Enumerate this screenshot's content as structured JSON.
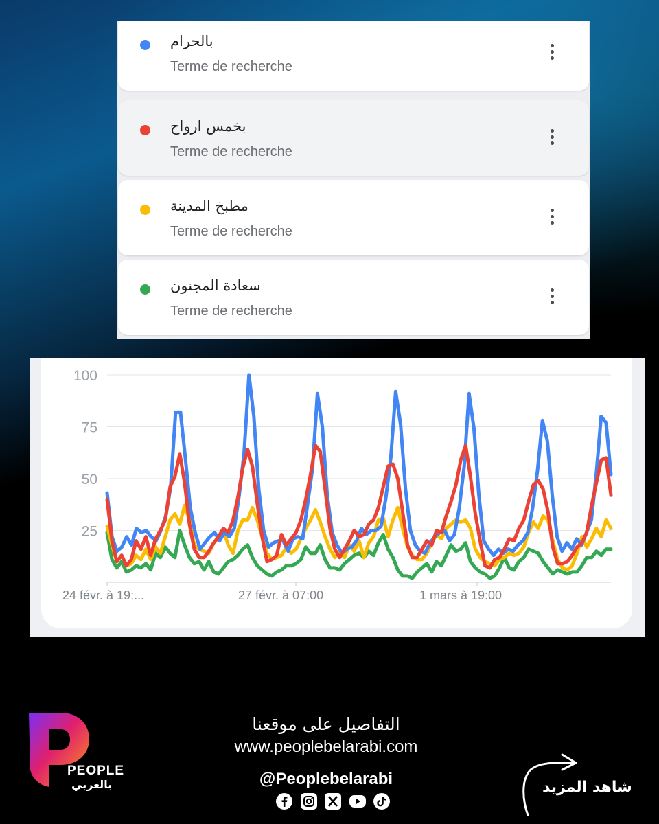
{
  "terms": [
    {
      "name": "بالحرام",
      "subtitle": "Terme de recherche",
      "color": "#4285f4",
      "menu_icon": "more-vert-icon"
    },
    {
      "name": "بخمس ارواح",
      "subtitle": "Terme de recherche",
      "color": "#ea4335",
      "menu_icon": "more-vert-icon"
    },
    {
      "name": "مطبخ المدينة",
      "subtitle": "Terme de recherche",
      "color": "#fbbc04",
      "menu_icon": "more-vert-icon"
    },
    {
      "name": "سعادة المجنون",
      "subtitle": "Terme de recherche",
      "color": "#34a853",
      "menu_icon": "more-vert-icon"
    }
  ],
  "chart_data": {
    "type": "line",
    "y_ticks": [
      "100",
      "75",
      "50",
      "25"
    ],
    "ylim": [
      0,
      100
    ],
    "x_ticks": [
      "24 févr. à 19:...",
      "27 févr. à 07:00",
      "1 mars à 19:00"
    ],
    "grid": true,
    "series": [
      {
        "name": "بالحرام",
        "color": "#4285f4",
        "values": [
          43,
          22,
          15,
          17,
          22,
          18,
          26,
          24,
          25,
          22,
          20,
          25,
          32,
          46,
          82,
          82,
          60,
          36,
          24,
          16,
          19,
          22,
          24,
          20,
          24,
          22,
          26,
          42,
          62,
          100,
          80,
          45,
          25,
          17,
          19,
          20,
          20,
          15,
          21,
          22,
          21,
          38,
          55,
          91,
          75,
          42,
          24,
          18,
          14,
          16,
          17,
          20,
          26,
          23,
          25,
          25,
          27,
          41,
          60,
          92,
          76,
          45,
          25,
          18,
          15,
          14,
          19,
          22,
          24,
          25,
          20,
          23,
          36,
          56,
          91,
          74,
          42,
          20,
          16,
          13,
          16,
          14,
          16,
          15,
          18,
          20,
          24,
          36,
          54,
          78,
          68,
          42,
          22,
          15,
          19,
          16,
          21,
          18,
          24,
          30,
          52,
          80,
          77,
          52
        ]
      },
      {
        "name": "بخمس ارواح",
        "color": "#ea4335",
        "values": [
          40,
          20,
          10,
          13,
          8,
          11,
          20,
          16,
          22,
          13,
          21,
          25,
          30,
          46,
          51,
          62,
          48,
          28,
          16,
          12,
          12,
          15,
          19,
          22,
          26,
          24,
          30,
          41,
          55,
          64,
          56,
          38,
          22,
          10,
          11,
          13,
          23,
          18,
          21,
          24,
          30,
          40,
          52,
          66,
          63,
          45,
          26,
          16,
          12,
          16,
          20,
          25,
          22,
          23,
          28,
          30,
          36,
          46,
          56,
          57,
          50,
          34,
          18,
          12,
          12,
          16,
          20,
          18,
          25,
          24,
          32,
          39,
          47,
          59,
          66,
          51,
          33,
          20,
          8,
          7,
          11,
          12,
          16,
          21,
          20,
          26,
          30,
          39,
          47,
          49,
          45,
          34,
          17,
          9,
          9,
          10,
          13,
          17,
          19,
          24,
          37,
          48,
          59,
          60,
          42
        ]
      },
      {
        "name": "مطبخ المدينة",
        "color": "#fbbc04",
        "values": [
          27,
          18,
          10,
          13,
          8,
          9,
          13,
          11,
          16,
          11,
          17,
          14,
          22,
          30,
          33,
          28,
          37,
          30,
          18,
          16,
          15,
          14,
          19,
          21,
          25,
          18,
          14,
          25,
          30,
          30,
          36,
          30,
          22,
          14,
          11,
          12,
          13,
          17,
          14,
          16,
          21,
          26,
          30,
          35,
          29,
          22,
          16,
          12,
          15,
          12,
          18,
          15,
          20,
          12,
          19,
          22,
          30,
          31,
          22,
          30,
          36,
          26,
          17,
          13,
          11,
          11,
          14,
          19,
          23,
          21,
          26,
          28,
          30,
          29,
          30,
          26,
          16,
          12,
          10,
          9,
          8,
          11,
          12,
          14,
          13,
          14,
          17,
          24,
          29,
          26,
          32,
          30,
          20,
          11,
          7,
          6,
          8,
          14,
          22,
          17,
          21,
          26,
          22,
          30,
          26
        ]
      },
      {
        "name": "سعادة المجنون",
        "color": "#34a853",
        "values": [
          24,
          11,
          7,
          10,
          5,
          6,
          8,
          7,
          9,
          6,
          14,
          12,
          17,
          14,
          12,
          25,
          18,
          12,
          9,
          10,
          6,
          10,
          5,
          4,
          7,
          10,
          11,
          13,
          16,
          18,
          12,
          8,
          6,
          4,
          3,
          5,
          6,
          8,
          8,
          9,
          11,
          17,
          14,
          14,
          18,
          11,
          7,
          7,
          6,
          9,
          11,
          13,
          14,
          12,
          15,
          13,
          19,
          23,
          16,
          12,
          6,
          3,
          3,
          2,
          5,
          7,
          9,
          5,
          10,
          8,
          13,
          18,
          15,
          16,
          19,
          10,
          7,
          5,
          4,
          2,
          3,
          7,
          12,
          7,
          6,
          10,
          12,
          16,
          15,
          14,
          10,
          7,
          4,
          6,
          5,
          4,
          5,
          5,
          8,
          12,
          12,
          15,
          13,
          16,
          16
        ]
      }
    ]
  },
  "footer": {
    "brand": "PEOPLE",
    "brand_arabic": "بالعربي",
    "details": "التفاصيل على موقعنا",
    "website": "www.peoplebelarabi.com",
    "handle": "@Peoplebelarabi",
    "socials": [
      "facebook-icon",
      "instagram-icon",
      "x-icon",
      "youtube-icon",
      "tiktok-icon"
    ],
    "see_more": "شاهد المزيد"
  }
}
